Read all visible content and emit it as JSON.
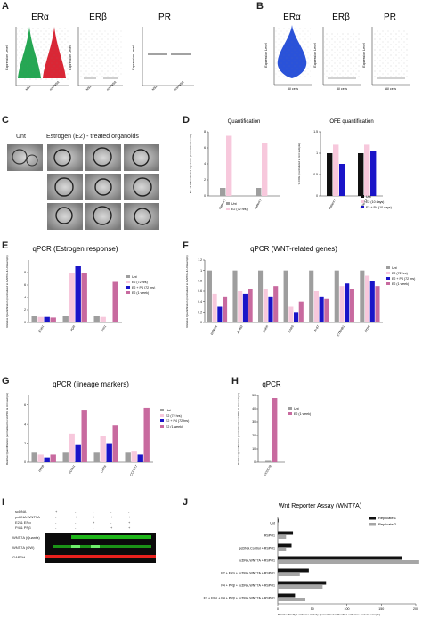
{
  "panels": {
    "A": {
      "letter": "A",
      "titles": [
        "ERα",
        "ERβ",
        "PR"
      ],
      "ylabel": "Expression Level",
      "xlabels": [
        "NSA",
        "non-NSA"
      ]
    },
    "B": {
      "letter": "B",
      "titles": [
        "ERα",
        "ERβ",
        "PR"
      ],
      "ylabel": "Expression Level",
      "xlabel": "All cells"
    },
    "C": {
      "letter": "C",
      "unt": "Unt",
      "treated": "Estrogen (E2) - treated organoids"
    },
    "D": {
      "letter": "D"
    },
    "E": {
      "letter": "E"
    },
    "F": {
      "letter": "F"
    },
    "G": {
      "letter": "G"
    },
    "H": {
      "letter": "H"
    },
    "I": {
      "letter": "I",
      "rows": [
        "scDNA",
        "pcDNA.WNT7A",
        "E2 & ERα",
        "P4 & PRβ"
      ],
      "bands": [
        "WNT7A (Quanta)",
        "WNT7A (OW)",
        "GAPDH"
      ]
    },
    "J": {
      "letter": "J"
    }
  },
  "chart_data": [
    {
      "id": "D1",
      "type": "bar",
      "title": "Quantification",
      "ylabel": "No. of differentiated organoids (normalized to Unt)",
      "categories": [
        "Patient 1",
        "Patient 2"
      ],
      "series": [
        {
          "name": "Unt",
          "color": "#9e9e9e",
          "values": [
            1,
            1
          ]
        },
        {
          "name": "E2 (72 hrs)",
          "color": "#f7c8dc",
          "values": [
            7.5,
            6.6
          ]
        }
      ],
      "ylim": [
        0,
        8
      ],
      "yticks": [
        0,
        2,
        4,
        6,
        8
      ],
      "legend": "bottom-right"
    },
    {
      "id": "D2",
      "type": "bar",
      "title": "OFE quantification",
      "ylabel": "% OFE (normalized to Unt sample)",
      "categories": [
        "Patient 1",
        "Patient 3"
      ],
      "series": [
        {
          "name": "Unt",
          "color": "#111111",
          "values": [
            1,
            1
          ]
        },
        {
          "name": "E2 (10 days)",
          "color": "#f7c8dc",
          "values": [
            1.2,
            1.2
          ]
        },
        {
          "name": "E2 + P4 (10 days)",
          "color": "#1a14c8",
          "values": [
            0.75,
            1.05
          ]
        }
      ],
      "ylim": [
        0,
        1.5
      ],
      "yticks": [
        0,
        0.5,
        1.0,
        1.5
      ],
      "legend": "bottom-right"
    },
    {
      "id": "E",
      "type": "bar",
      "title": "qPCR (Estrogen response)",
      "ylabel": "Relative Quantification (normalized to GAPDH & Unt sample)",
      "categories": [
        "ESR1",
        "PGR",
        "TFF1"
      ],
      "series": [
        {
          "name": "Unt",
          "color": "#9e9e9e",
          "values": [
            1,
            1,
            1
          ]
        },
        {
          "name": "E2 (72 hrs)",
          "color": "#f7c8dc",
          "values": [
            0.9,
            8,
            0.9
          ]
        },
        {
          "name": "E2 + P4 (72 hrs)",
          "color": "#1a14c8",
          "values": [
            0.9,
            9,
            0
          ]
        },
        {
          "name": "E2 (1 week)",
          "color": "#c86a9f",
          "values": [
            0.8,
            8,
            6.5
          ]
        }
      ],
      "ylim": [
        0,
        10
      ],
      "yticks": [
        0,
        2,
        4,
        6,
        8
      ],
      "legend": "right"
    },
    {
      "id": "F",
      "type": "bar",
      "title": "qPCR (WNT-related genes)",
      "ylabel": "Relative Quantification (normalized to GAPDH & Unt sample)",
      "categories": [
        "WNT7A",
        "AXIN2",
        "LGR5",
        "LGR6",
        "Ki-67",
        "CTNNB1",
        "FZD5"
      ],
      "series": [
        {
          "name": "Unt",
          "color": "#9e9e9e",
          "values": [
            1,
            1,
            1,
            1,
            1,
            1,
            1
          ]
        },
        {
          "name": "E2 (72 hrs)",
          "color": "#f7c8dc",
          "values": [
            0.55,
            0.6,
            0.65,
            0.3,
            0.6,
            0.7,
            0.9
          ]
        },
        {
          "name": "E2 + P4 (72 hrs)",
          "color": "#1a14c8",
          "values": [
            0.3,
            0.55,
            0.5,
            0.2,
            0.5,
            0.75,
            0.8
          ]
        },
        {
          "name": "E2 (1 week)",
          "color": "#c86a9f",
          "values": [
            0.5,
            0.65,
            0.7,
            0.4,
            0.45,
            0.65,
            0.7
          ]
        }
      ],
      "ylim": [
        0,
        1.2
      ],
      "yticks": [
        0,
        0.2,
        0.4,
        0.6,
        0.8,
        1.0,
        1.2
      ],
      "legend": "right"
    },
    {
      "id": "G",
      "type": "bar",
      "title": "qPCR (lineage markers)",
      "ylabel": "Relative Quantification (normalized to GAPDH & Unt sample)",
      "categories": [
        "PAX8",
        "FOXJ1",
        "CAPS",
        "CCDC17"
      ],
      "series": [
        {
          "name": "Unt",
          "color": "#9e9e9e",
          "values": [
            1,
            1,
            1,
            1
          ]
        },
        {
          "name": "E2 (72 hrs)",
          "color": "#f7c8dc",
          "values": [
            0.8,
            3,
            2.8,
            1.2
          ]
        },
        {
          "name": "E2 + P4 (72 hrs)",
          "color": "#1a14c8",
          "values": [
            0.5,
            1.8,
            2.0,
            0.8
          ]
        },
        {
          "name": "E2 (1 week)",
          "color": "#c86a9f",
          "values": [
            0.8,
            5.5,
            3.9,
            5.7
          ]
        }
      ],
      "ylim": [
        0,
        7
      ],
      "yticks": [
        0,
        2,
        4,
        6
      ],
      "legend": "right"
    },
    {
      "id": "H",
      "type": "bar",
      "title": "qPCR",
      "ylabel": "Relative Quantification (normalized to GAPDH & Unt sample)",
      "categories": [
        "CCDC78"
      ],
      "series": [
        {
          "name": "Unt",
          "color": "#9e9e9e",
          "values": [
            1
          ]
        },
        {
          "name": "E2 (1 week)",
          "color": "#c86a9f",
          "values": [
            48
          ]
        }
      ],
      "ylim": [
        0,
        50
      ],
      "yticks": [
        0,
        10,
        20,
        30,
        40,
        50
      ],
      "legend": "right"
    },
    {
      "id": "J",
      "type": "bar",
      "orientation": "horizontal",
      "title": "Wnt Reporter Assay (WNT7A)",
      "xlabel": "Relative Firefly Luciferase Activity (normalized to Renilla Luciferase and Unt sample)",
      "categories": [
        "Unt",
        "RSPO1",
        "pcDNA.Control + RSPO1",
        "pcDNA.WNT7A + RSPO1",
        "E2 + ERα + pcDNA.WNT7A + RSPO1",
        "P4 + PRβ + pcDNA.WNT7A + RSPO1",
        "E2 + ERα + P4 + PRβ + pcDNA.WNT7A + RSPO1"
      ],
      "series": [
        {
          "name": "Replicate 1",
          "color": "#111111",
          "values": [
            1,
            22,
            20,
            180,
            45,
            70,
            25
          ]
        },
        {
          "name": "Replicate 2",
          "color": "#a6a6a6",
          "values": [
            1,
            12,
            12,
            205,
            32,
            65,
            40
          ]
        }
      ],
      "xlim": [
        0,
        200
      ],
      "xticks": [
        0,
        50,
        100,
        150,
        200
      ],
      "legend": "top-right"
    }
  ]
}
